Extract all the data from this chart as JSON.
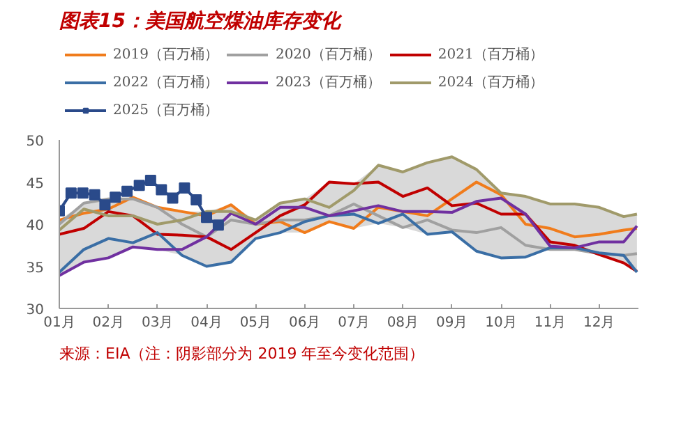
{
  "chart_data": {
    "type": "line",
    "title": "图表15：美国航空煤油库存变化",
    "annotations": [
      "来源：EIA（注：阴影部分为 2019 年至今变化范围）"
    ],
    "x": [
      1,
      1.5,
      2,
      2.5,
      3,
      3.5,
      4,
      4.5,
      5,
      5.5,
      6,
      6.5,
      7,
      7.5,
      8,
      8.5,
      9,
      9.5,
      10,
      10.5,
      11,
      11.5,
      12,
      12.5,
      12.77
    ],
    "xlim": [
      1,
      12.8
    ],
    "ylim": [
      30,
      50
    ],
    "yticks": [
      30,
      35,
      40,
      45,
      50
    ],
    "xticks": [
      {
        "value": 1,
        "label": "01月"
      },
      {
        "value": 2,
        "label": "02月"
      },
      {
        "value": 3,
        "label": "03月"
      },
      {
        "value": 4,
        "label": "04月"
      },
      {
        "value": 5,
        "label": "05月"
      },
      {
        "value": 6,
        "label": "06月"
      },
      {
        "value": 7,
        "label": "07月"
      },
      {
        "value": 8,
        "label": "08月"
      },
      {
        "value": 9,
        "label": "09月"
      },
      {
        "value": 10,
        "label": "10月"
      },
      {
        "value": 11,
        "label": "11月"
      },
      {
        "value": 12,
        "label": "12月"
      }
    ],
    "grid": false,
    "legend": "top",
    "marker": "none",
    "line_style": "solid",
    "series": [
      {
        "name": "2019（百万桶）",
        "color": "#f07c1c",
        "values": [
          40.5,
          41.3,
          41.8,
          43.2,
          42,
          41.5,
          41,
          42.3,
          40,
          40.3,
          39,
          40.3,
          39.5,
          42,
          41.5,
          41,
          43,
          45,
          43.5,
          40,
          39.5,
          38.5,
          38.8,
          39.3,
          39.5
        ],
        "lower": [
          33.9,
          35.5,
          36,
          37.3,
          37,
          36.3,
          35,
          35.5,
          38.3,
          39,
          39,
          40.3,
          39.5,
          40.1,
          39.6,
          38.8,
          39.1,
          36.8,
          36,
          36.1,
          37,
          37,
          36.4,
          35.4,
          34.3
        ],
        "upper": [
          40.5,
          42.5,
          43,
          43.2,
          42,
          41.5,
          41.5,
          42.3,
          40.5,
          42.5,
          43,
          45,
          44.8,
          47,
          46.2,
          47.3,
          48,
          46.5,
          43.7,
          43.3,
          42.4,
          42.4,
          42,
          40.9,
          41.2
        ]
      },
      {
        "name": "2020（百万桶）",
        "color": "#a0a0a0",
        "values": [
          40,
          42.5,
          43,
          43,
          42,
          40,
          38.5,
          40.5,
          40,
          40.5,
          40.5,
          41,
          42.4,
          41,
          39.6,
          40.5,
          39.3,
          39,
          39.6,
          37.5,
          37,
          37,
          36.5,
          36.3,
          36.5
        ]
      },
      {
        "name": "2021（百万桶）",
        "color": "#c00000",
        "values": [
          38.8,
          39.5,
          41.5,
          41,
          38.8,
          38.7,
          38.5,
          37,
          39,
          41,
          42.3,
          45,
          44.8,
          45,
          43.3,
          44.3,
          42.2,
          42.5,
          41.2,
          41.2,
          37.9,
          37.5,
          36.4,
          35.4,
          34.4
        ]
      },
      {
        "name": "2022（百万桶）",
        "color": "#3a6ea5",
        "values": [
          34.3,
          37,
          38.3,
          37.8,
          39,
          36.3,
          35,
          35.5,
          38.3,
          39,
          40.3,
          41,
          41.2,
          40.1,
          41.2,
          38.8,
          39.1,
          36.8,
          36,
          36.1,
          37.2,
          37.2,
          36.6,
          36.3,
          34.3
        ]
      },
      {
        "name": "2023（百万桶）",
        "color": "#7030a0",
        "values": [
          33.9,
          35.5,
          36,
          37.3,
          37,
          37,
          38.5,
          41.3,
          40,
          42,
          42,
          41,
          41.6,
          42.2,
          41.5,
          41.5,
          41.4,
          42.7,
          43.1,
          41.2,
          37.4,
          37.2,
          37.9,
          37.9,
          39.8
        ]
      },
      {
        "name": "2024（百万桶）",
        "color": "#a09a6a",
        "values": [
          39.3,
          41.8,
          41,
          41,
          40,
          40.5,
          41.5,
          41.5,
          40.5,
          42.5,
          43,
          42,
          44,
          47,
          46.2,
          47.3,
          48,
          46.5,
          43.7,
          43.3,
          42.4,
          42.4,
          42,
          40.9,
          41.2
        ]
      },
      {
        "name": "2025（百万桶）",
        "color": "#2a4a8a",
        "marker": "square",
        "x": [
          1.0,
          1.24,
          1.48,
          1.72,
          1.93,
          2.14,
          2.38,
          2.63,
          2.86,
          3.08,
          3.31,
          3.55,
          3.79,
          4.0,
          4.24
        ],
        "values": [
          41.6,
          43.7,
          43.7,
          43.5,
          42.3,
          43.2,
          43.9,
          44.6,
          45.2,
          44.1,
          43.1,
          44.3,
          42.9,
          40.8,
          39.9
        ]
      }
    ]
  }
}
